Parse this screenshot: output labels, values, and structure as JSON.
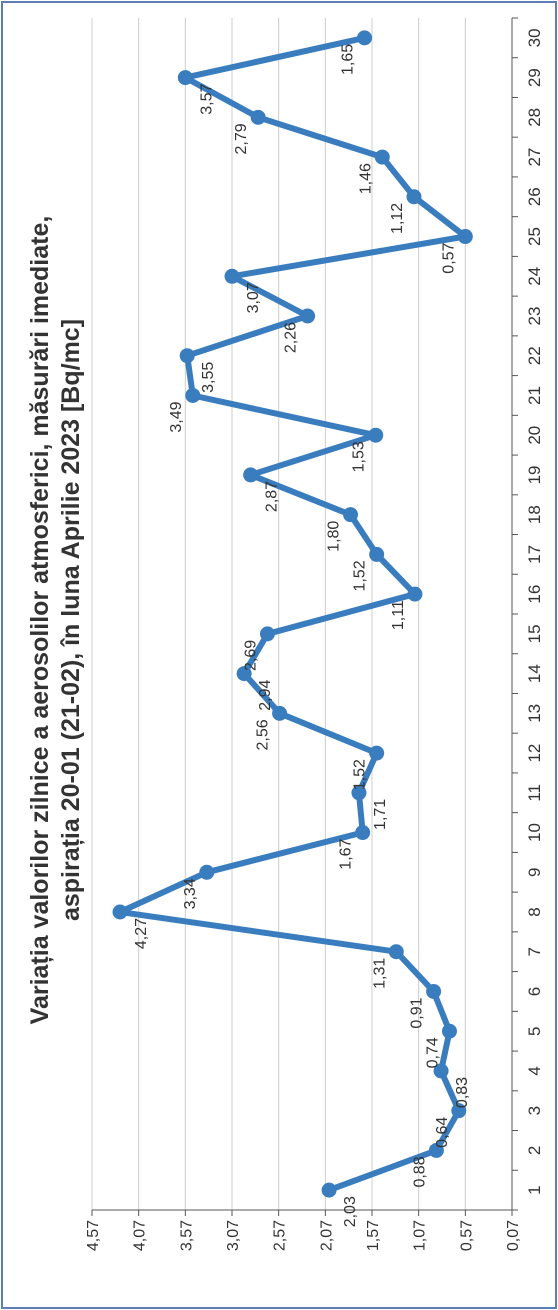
{
  "chart_data": {
    "type": "line",
    "title_line1": "Variația valorilor zilnice a aerosolilor atmosferici, măsurări imediate,",
    "title_line2": "aspirația 20-01 (21-02),  în luna Aprilie 2023 [Bq/mc]",
    "x": [
      1,
      2,
      3,
      4,
      5,
      6,
      7,
      8,
      9,
      10,
      11,
      12,
      13,
      14,
      15,
      16,
      17,
      18,
      19,
      20,
      21,
      22,
      23,
      24,
      25,
      26,
      27,
      28,
      29,
      30
    ],
    "values": [
      2.03,
      0.88,
      0.64,
      0.83,
      0.74,
      0.91,
      1.31,
      4.27,
      3.34,
      1.67,
      1.71,
      1.52,
      2.56,
      2.94,
      2.69,
      1.11,
      1.52,
      1.8,
      2.87,
      1.53,
      3.49,
      3.55,
      2.26,
      3.07,
      0.57,
      1.12,
      1.46,
      2.79,
      3.57,
      1.65
    ],
    "point_labels": [
      "2,03",
      "0,88",
      "0,64",
      "0,83",
      "0,74",
      "0,91",
      "1,31",
      "4,27",
      "3,34",
      "1,67",
      "1,71",
      "1,52",
      "2,56",
      "2,94",
      "2,69",
      "1,11",
      "1,52",
      "1,80",
      "2,87",
      "1,53",
      "3,49",
      "3,55",
      "2,26",
      "3,07",
      "0,57",
      "1,12",
      "1,46",
      "2,79",
      "3,57",
      "1,65"
    ],
    "x_tick_labels": [
      "1",
      "2",
      "3",
      "4",
      "5",
      "6",
      "7",
      "8",
      "9",
      "10",
      "11",
      "12",
      "13",
      "14",
      "15",
      "16",
      "17",
      "18",
      "19",
      "20",
      "21",
      "22",
      "23",
      "24",
      "25",
      "26",
      "27",
      "28",
      "29",
      "30"
    ],
    "y_ticks": [
      0.07,
      0.57,
      1.07,
      1.57,
      2.07,
      2.57,
      3.07,
      3.57,
      4.07,
      4.57
    ],
    "y_tick_labels": [
      "0,07",
      "0,57",
      "1,07",
      "1,57",
      "2,07",
      "2,57",
      "3,07",
      "3,57",
      "4,07",
      "4,57"
    ],
    "ylim": [
      0.07,
      4.57
    ],
    "grid": true,
    "orientation": "rotated-90-ccw",
    "colors": {
      "line": "#3a7dbf",
      "grid": "#cccccc",
      "frame": "#5b7fb5",
      "text": "#333333"
    }
  }
}
